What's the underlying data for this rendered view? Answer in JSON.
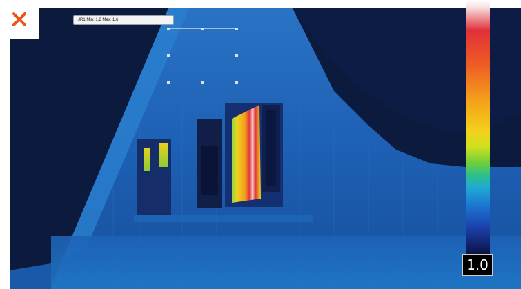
{
  "image": {
    "description_colors": {
      "sky": "#0c1a3d",
      "wall": "#1c5fb0",
      "hot": "#e0303a",
      "warm": "#f3d21a"
    }
  },
  "overlay": {
    "close_icon": "close-icon",
    "close_color": "#e8571c",
    "measure_label": "JR1 Min: 1,2 Max: 1,6"
  },
  "scale": {
    "value": "1.0",
    "icon": "thermal-color-scale"
  }
}
